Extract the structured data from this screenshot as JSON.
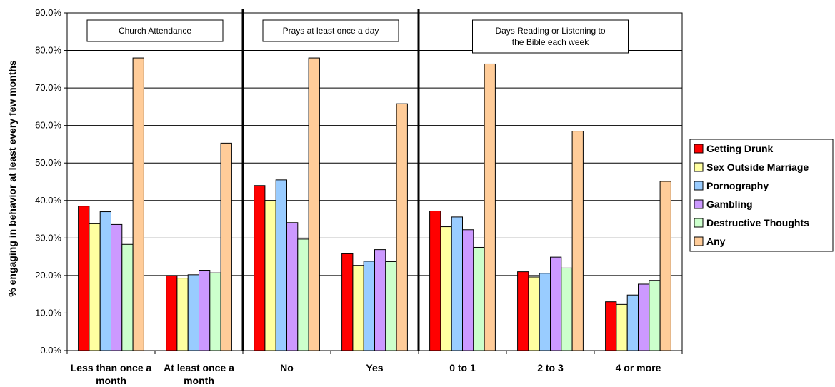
{
  "chart_data": {
    "type": "bar",
    "ylabel": "% engaging in behavior at least every few months",
    "ylim": [
      0,
      90
    ],
    "yticks": [
      "0.0%",
      "10.0%",
      "20.0%",
      "30.0%",
      "40.0%",
      "50.0%",
      "60.0%",
      "70.0%",
      "80.0%",
      "90.0%"
    ],
    "grid": true,
    "legend_position": "right",
    "groups": [
      {
        "title": "Church Attendance",
        "categories": [
          0,
          1
        ]
      },
      {
        "title": "Prays at least once a day",
        "categories": [
          2,
          3
        ]
      },
      {
        "title": "Days Reading or Listening to the Bible each week",
        "categories": [
          4,
          5,
          6
        ]
      }
    ],
    "categories": [
      "Less than once a month",
      "At least once a month",
      "No",
      "Yes",
      "0 to 1",
      "2 to 3",
      "4 or more"
    ],
    "series": [
      {
        "name": "Getting Drunk",
        "color": "#ff0000",
        "values": [
          38.5,
          20.0,
          44.0,
          25.8,
          37.2,
          21.0,
          13.0
        ]
      },
      {
        "name": "Sex Outside Marriage",
        "color": "#ffffa0",
        "values": [
          33.8,
          19.3,
          40.0,
          22.7,
          33.0,
          19.6,
          12.3
        ]
      },
      {
        "name": "Pornography",
        "color": "#99ccff",
        "values": [
          37.0,
          20.2,
          45.5,
          23.8,
          35.6,
          20.6,
          14.8
        ]
      },
      {
        "name": "Gambling",
        "color": "#cc99ff",
        "values": [
          33.6,
          21.4,
          34.1,
          26.9,
          32.2,
          24.9,
          17.7
        ]
      },
      {
        "name": "Destructive Thoughts",
        "color": "#ccffcc",
        "values": [
          28.3,
          20.7,
          29.7,
          23.7,
          27.5,
          22.0,
          18.7
        ]
      },
      {
        "name": "Any",
        "color": "#ffcc99",
        "values": [
          78.0,
          55.3,
          78.0,
          65.8,
          76.4,
          58.5,
          45.1
        ]
      }
    ]
  }
}
